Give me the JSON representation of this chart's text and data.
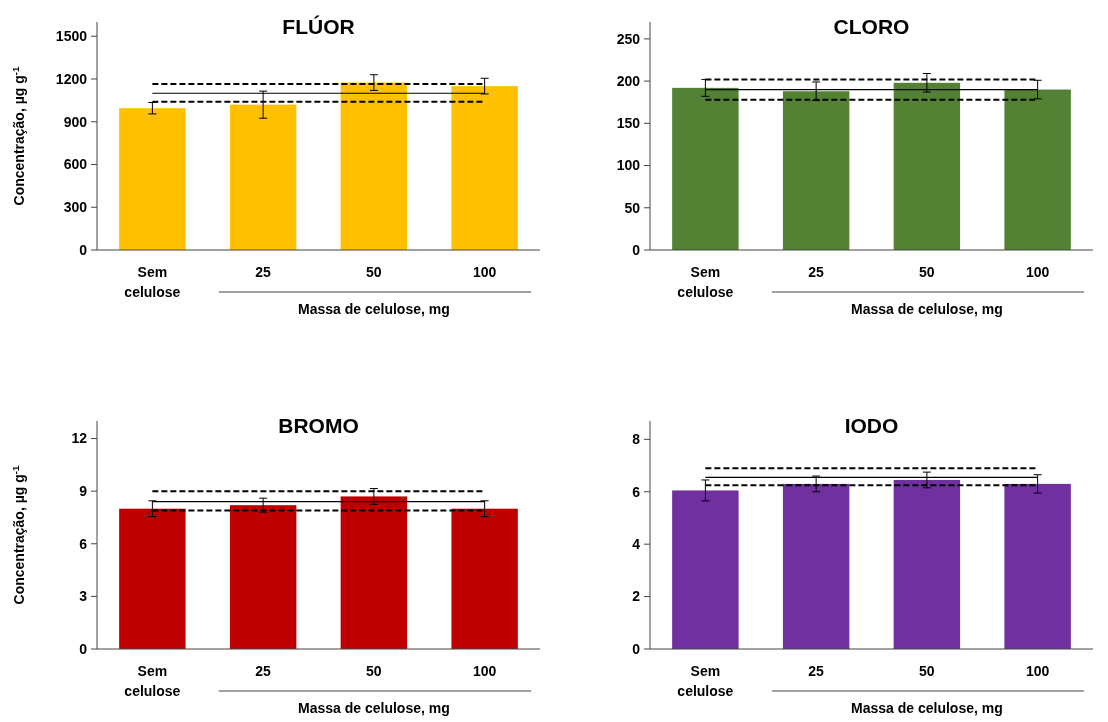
{
  "chart_data": [
    {
      "type": "bar",
      "title": "FLÚOR",
      "ylabel": "Concentração, µg g$^{-1}$",
      "xlabel": "Massa de celulose, mg",
      "categories": [
        "Sem celulose",
        "25",
        "50",
        "100"
      ],
      "values": [
        995,
        1020,
        1175,
        1150
      ],
      "errors": [
        40,
        95,
        55,
        55
      ],
      "color": "#ffc000",
      "ylim": [
        0,
        1600
      ],
      "yticks": [
        0,
        300,
        600,
        900,
        1200,
        1500
      ],
      "ref_lines": [
        {
          "axis": "y",
          "value": 1100,
          "line_style": "solid",
          "color": "#000000"
        },
        {
          "axis": "y",
          "value": 1165,
          "line_style": "dashed",
          "color": "#000000"
        },
        {
          "axis": "y",
          "value": 1040,
          "line_style": "dashed",
          "color": "#000000"
        }
      ]
    },
    {
      "type": "bar",
      "title": "CLORO",
      "xlabel": "Massa de celulose, mg",
      "categories": [
        "Sem celulose",
        "25",
        "50",
        "100"
      ],
      "values": [
        192,
        188,
        198,
        190
      ],
      "errors": [
        10,
        11,
        11,
        11
      ],
      "color": "#548235",
      "ylim": [
        0,
        270
      ],
      "yticks": [
        0,
        50,
        100,
        150,
        200,
        250
      ],
      "ref_lines": [
        {
          "axis": "y",
          "value": 190,
          "line_style": "solid",
          "color": "#000000"
        },
        {
          "axis": "y",
          "value": 202,
          "line_style": "dashed",
          "color": "#000000"
        },
        {
          "axis": "y",
          "value": 178,
          "line_style": "dashed",
          "color": "#000000"
        }
      ]
    },
    {
      "type": "bar",
      "title": "BROMO",
      "ylabel": "Concentração, µg g$^{-1}$",
      "xlabel": "Massa de celulose, mg",
      "categories": [
        "Sem celulose",
        "25",
        "50",
        "100"
      ],
      "values": [
        8.0,
        8.2,
        8.7,
        8.0
      ],
      "errors": [
        0.45,
        0.4,
        0.45,
        0.45
      ],
      "color": "#c00000",
      "ylim": [
        0,
        13
      ],
      "yticks": [
        0,
        3,
        6,
        9,
        12
      ],
      "ref_lines": [
        {
          "axis": "y",
          "value": 8.4,
          "line_style": "solid",
          "color": "#000000"
        },
        {
          "axis": "y",
          "value": 9.0,
          "line_style": "dashed",
          "color": "#000000"
        },
        {
          "axis": "y",
          "value": 7.9,
          "line_style": "dashed",
          "color": "#000000"
        }
      ]
    },
    {
      "type": "bar",
      "title": "IODO",
      "xlabel": "Massa de celulose, mg",
      "categories": [
        "Sem celulose",
        "25",
        "50",
        "100"
      ],
      "values": [
        6.05,
        6.3,
        6.45,
        6.3
      ],
      "errors": [
        0.4,
        0.3,
        0.3,
        0.35
      ],
      "color": "#7030a0",
      "ylim": [
        0,
        8.7
      ],
      "yticks": [
        0,
        2,
        4,
        6,
        8
      ],
      "ref_lines": [
        {
          "axis": "y",
          "value": 6.55,
          "line_style": "solid",
          "color": "#000000"
        },
        {
          "axis": "y",
          "value": 6.9,
          "line_style": "dashed",
          "color": "#000000"
        },
        {
          "axis": "y",
          "value": 6.25,
          "line_style": "dashed",
          "color": "#000000"
        }
      ]
    }
  ]
}
